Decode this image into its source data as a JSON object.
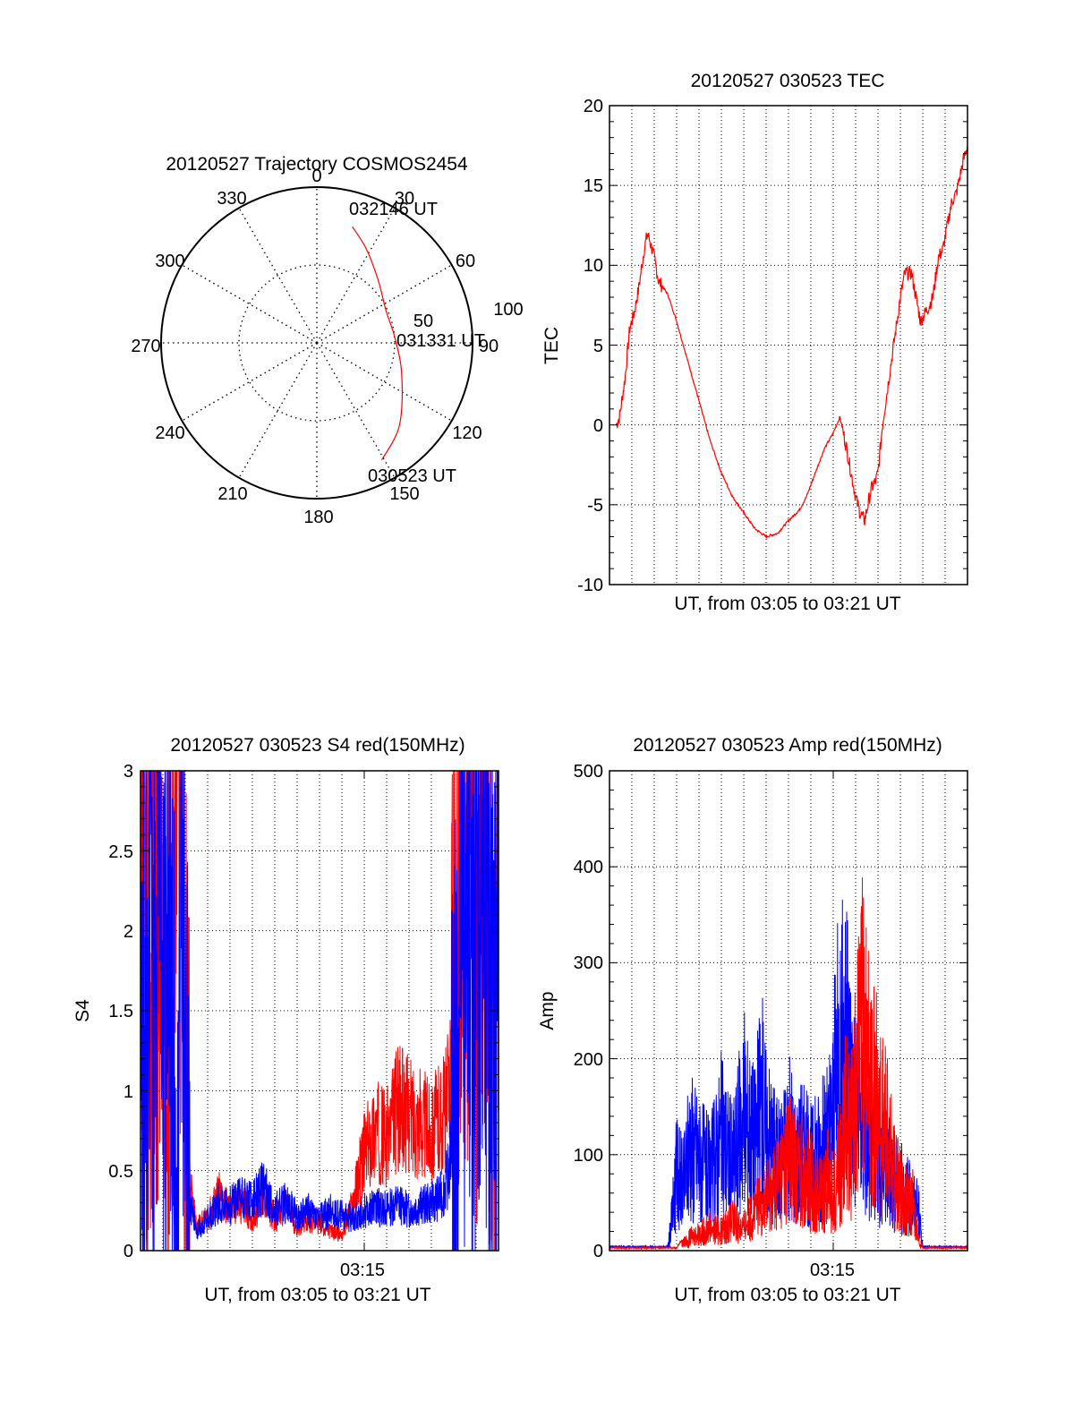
{
  "colors": {
    "red": "#ff0000",
    "blue": "#0000ff",
    "axis": "#000000",
    "grid": "#000000",
    "background": "#ffffff"
  },
  "chart_data": [
    {
      "id": "polar",
      "type": "scatter",
      "subtype": "polar-trajectory",
      "title": "20120527 Trajectory COSMOS2454",
      "azimuth_labels": [
        "0",
        "30",
        "60",
        "90",
        "120",
        "150",
        "180",
        "210",
        "240",
        "270",
        "300",
        "330"
      ],
      "radius_labels": [
        "50",
        "100"
      ],
      "grid": true,
      "trajectory": {
        "color": "#ff0000",
        "points": [
          {
            "az": 17,
            "r": 78
          },
          {
            "az": 28,
            "r": 68
          },
          {
            "az": 45,
            "r": 56
          },
          {
            "az": 65,
            "r": 49
          },
          {
            "az": 85,
            "r": 50
          },
          {
            "az": 110,
            "r": 58
          },
          {
            "az": 135,
            "r": 75
          },
          {
            "az": 151,
            "r": 86
          }
        ]
      },
      "annotations": [
        "032146 UT",
        "031331 UT",
        "030523 UT"
      ]
    },
    {
      "id": "tec",
      "type": "line",
      "title": "20120527 030523 TEC",
      "xlabel": "UT, from 03:05 to 03:21 UT",
      "ylabel": "TEC",
      "xlim": [
        0,
        16
      ],
      "ylim": [
        -10,
        20
      ],
      "yticks": [
        "-10",
        "-5",
        "0",
        "5",
        "10",
        "15",
        "20"
      ],
      "grid": true,
      "series": [
        {
          "color": "#ff0000",
          "x": [
            0.3,
            0.45,
            0.7,
            0.9,
            1.1,
            1.3,
            1.55,
            1.7,
            1.95,
            2.2,
            2.6,
            3.0,
            3.5,
            4.0,
            4.5,
            5.0,
            5.5,
            6.0,
            6.5,
            7.0,
            7.5,
            8.0,
            8.5,
            8.8,
            9.2,
            9.6,
            10.0,
            10.3,
            10.6,
            10.8,
            11.0,
            11.2,
            11.4,
            11.7,
            11.9,
            12.0,
            12.2,
            12.5,
            12.8,
            13.0,
            13.2,
            13.5,
            13.9,
            14.1,
            14.3,
            14.45,
            14.7,
            14.9,
            15.1,
            15.3,
            15.5,
            15.8,
            16.0
          ],
          "values": [
            0.0,
            0.5,
            3.0,
            6.0,
            7.0,
            8.5,
            11.0,
            12.0,
            10.8,
            9.0,
            8.2,
            6.5,
            4.0,
            1.5,
            -1.0,
            -3.0,
            -4.5,
            -5.5,
            -6.5,
            -7.0,
            -6.8,
            -6.0,
            -5.3,
            -4.5,
            -3.0,
            -1.5,
            -0.5,
            0.5,
            -1.5,
            -3.0,
            -4.5,
            -5.5,
            -6.0,
            -4.0,
            -3.5,
            -3.0,
            0.0,
            3.0,
            6.0,
            8.0,
            9.5,
            9.5,
            6.5,
            7.0,
            7.5,
            8.0,
            10.5,
            11.0,
            12.5,
            14.0,
            14.5,
            16.5,
            17.5
          ]
        }
      ]
    },
    {
      "id": "s4",
      "type": "line",
      "title": "20120527 030523 S4 red(150MHz)",
      "xlabel": "UT, from 03:05 to 03:21 UT",
      "ylabel": "S4",
      "xlim": [
        0,
        16
      ],
      "ylim": [
        0,
        3
      ],
      "yticks": [
        "0",
        "0.5",
        "1",
        "1.5",
        "2",
        "2.5",
        "3"
      ],
      "xtick_label": "03:15",
      "xtick_value": 10,
      "grid": true,
      "series": [
        {
          "color": "#ff0000",
          "x": [
            0.0,
            0.2,
            0.4,
            0.6,
            0.8,
            1.0,
            1.2,
            1.4,
            1.6,
            1.8,
            2.0,
            2.2,
            2.5,
            2.8,
            3.0,
            3.5,
            4.0,
            4.5,
            5.0,
            5.5,
            6.0,
            6.5,
            7.0,
            7.5,
            8.0,
            8.5,
            9.0,
            9.5,
            9.8,
            10.0,
            10.5,
            11.0,
            11.5,
            12.0,
            12.5,
            13.0,
            13.5,
            13.7,
            13.9,
            14.1,
            14.4,
            14.7,
            15.0,
            15.3,
            15.6,
            16.0
          ],
          "values": [
            2.8,
            3.0,
            1.5,
            3.0,
            2.2,
            3.0,
            0.8,
            3.0,
            2.5,
            3.0,
            1.5,
            0.4,
            0.15,
            0.18,
            0.2,
            0.35,
            0.25,
            0.3,
            0.2,
            0.35,
            0.2,
            0.28,
            0.15,
            0.2,
            0.18,
            0.12,
            0.1,
            0.3,
            0.5,
            0.6,
            0.75,
            0.7,
            0.9,
            0.85,
            0.8,
            0.75,
            0.85,
            0.9,
            1.3,
            2.4,
            3.0,
            3.0,
            2.6,
            3.0,
            2.5,
            2.2
          ]
        },
        {
          "color": "#0000ff",
          "x": [
            0.0,
            0.2,
            0.4,
            0.6,
            0.8,
            1.0,
            1.2,
            1.4,
            1.6,
            1.8,
            2.0,
            2.2,
            2.5,
            2.8,
            3.0,
            3.5,
            4.0,
            4.5,
            5.0,
            5.5,
            6.0,
            6.5,
            7.0,
            7.5,
            8.0,
            8.5,
            9.0,
            9.5,
            10.0,
            10.5,
            11.0,
            11.5,
            12.0,
            12.5,
            13.0,
            13.5,
            13.8,
            14.0,
            14.3,
            14.6,
            15.0,
            15.3,
            15.6,
            16.0
          ],
          "values": [
            3.0,
            0.8,
            3.0,
            2.0,
            3.0,
            1.0,
            3.0,
            2.4,
            0.5,
            3.0,
            1.5,
            0.3,
            0.12,
            0.16,
            0.2,
            0.3,
            0.28,
            0.35,
            0.3,
            0.4,
            0.25,
            0.3,
            0.22,
            0.25,
            0.2,
            0.25,
            0.22,
            0.2,
            0.25,
            0.28,
            0.26,
            0.3,
            0.25,
            0.28,
            0.3,
            0.35,
            0.5,
            1.0,
            1.8,
            2.5,
            2.2,
            2.6,
            2.0,
            1.8
          ]
        }
      ]
    },
    {
      "id": "amp",
      "type": "line",
      "title": "20120527 030523 Amp red(150MHz)",
      "xlabel": "UT, from 03:05 to 03:21 UT",
      "ylabel": "Amp",
      "xlim": [
        0,
        16
      ],
      "ylim": [
        0,
        500
      ],
      "yticks": [
        "0",
        "100",
        "200",
        "300",
        "400",
        "500"
      ],
      "xtick_label": "03:15",
      "xtick_value": 10,
      "grid": true,
      "series": [
        {
          "color": "#ff0000",
          "x": [
            0.0,
            2.0,
            3.0,
            3.5,
            4.0,
            4.5,
            5.0,
            5.5,
            6.0,
            6.5,
            7.0,
            7.5,
            8.0,
            8.5,
            9.0,
            9.5,
            9.8,
            10.0,
            10.2,
            10.4,
            10.6,
            10.8,
            11.0,
            11.3,
            11.6,
            12.0,
            12.4,
            12.8,
            13.2,
            13.6,
            13.8,
            14.0,
            16.0
          ],
          "values": [
            2,
            2,
            2,
            20,
            30,
            40,
            35,
            50,
            40,
            70,
            90,
            120,
            160,
            140,
            120,
            100,
            130,
            90,
            140,
            180,
            240,
            200,
            280,
            380,
            300,
            250,
            200,
            120,
            90,
            80,
            20,
            2,
            2
          ]
        },
        {
          "color": "#0000ff",
          "x": [
            0.0,
            2.0,
            2.6,
            2.8,
            3.0,
            3.3,
            3.6,
            4.0,
            4.5,
            5.0,
            5.5,
            6.0,
            6.5,
            6.8,
            7.0,
            7.3,
            7.6,
            8.0,
            8.3,
            8.6,
            9.0,
            9.4,
            9.8,
            10.0,
            10.2,
            10.5,
            10.8,
            11.0,
            11.3,
            11.6,
            12.0,
            12.4,
            12.8,
            13.2,
            13.6,
            13.8,
            14.0,
            16.0
          ],
          "values": [
            3,
            3,
            3,
            60,
            140,
            110,
            190,
            160,
            130,
            200,
            150,
            240,
            190,
            270,
            210,
            180,
            150,
            200,
            160,
            180,
            150,
            170,
            190,
            250,
            330,
            360,
            300,
            260,
            220,
            190,
            160,
            140,
            120,
            100,
            80,
            70,
            3,
            3
          ]
        }
      ]
    }
  ]
}
